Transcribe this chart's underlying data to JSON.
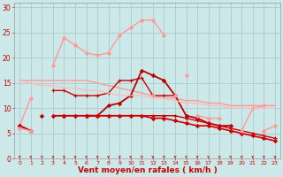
{
  "x": [
    0,
    1,
    2,
    3,
    4,
    5,
    6,
    7,
    8,
    9,
    10,
    11,
    12,
    13,
    14,
    15,
    16,
    17,
    18,
    19,
    20,
    21,
    22,
    23
  ],
  "bg_color": "#cce8e8",
  "grid_color": "#aacccc",
  "xlabel": "Vent moyen/en rafales ( km/h )",
  "xlabel_color": "#cc0000",
  "xlabel_fontsize": 6.5,
  "tick_color": "#cc0000",
  "ylim": [
    0,
    31
  ],
  "yticks": [
    0,
    5,
    10,
    15,
    20,
    25,
    30
  ],
  "lines": [
    {
      "y": [
        15.5,
        15.5,
        15.5,
        15.5,
        15.5,
        15.5,
        15.5,
        15.0,
        14.5,
        14.0,
        13.5,
        13.0,
        12.5,
        12.0,
        12.0,
        11.5,
        11.5,
        11.0,
        11.0,
        10.5,
        10.5,
        10.5,
        10.5,
        10.5
      ],
      "color": "#ff9999",
      "lw": 1.0,
      "marker": null,
      "ms": 0
    },
    {
      "y": [
        6.5,
        12.0,
        null,
        18.5,
        24.0,
        22.5,
        21.0,
        20.5,
        21.0,
        24.5,
        26.0,
        27.5,
        27.5,
        24.5,
        null,
        16.5,
        null,
        null,
        null,
        null,
        null,
        null,
        null,
        null
      ],
      "color": "#ff9999",
      "lw": 1.0,
      "marker": "D",
      "ms": 2.0
    },
    {
      "y": [
        6.5,
        5.5,
        null,
        13.5,
        13.5,
        12.5,
        12.5,
        12.5,
        13.0,
        15.5,
        15.5,
        16.0,
        12.5,
        12.5,
        12.5,
        null,
        null,
        null,
        null,
        null,
        null,
        null,
        null,
        null
      ],
      "color": "#cc0000",
      "lw": 1.0,
      "marker": "+",
      "ms": 3.5
    },
    {
      "y": [
        6.5,
        null,
        8.5,
        null,
        8.5,
        null,
        8.5,
        8.5,
        10.5,
        11.0,
        12.5,
        17.5,
        16.5,
        15.5,
        12.5,
        8.5,
        8.0,
        7.0,
        6.5,
        6.5,
        null,
        null,
        null,
        null
      ],
      "color": "#bb0000",
      "lw": 1.3,
      "marker": "D",
      "ms": 2.0
    },
    {
      "y": [
        6.5,
        5.5,
        null,
        8.5,
        8.5,
        8.5,
        8.5,
        8.5,
        8.5,
        8.5,
        8.5,
        8.5,
        8.0,
        8.0,
        7.5,
        7.0,
        6.5,
        6.5,
        6.0,
        5.5,
        5.0,
        4.5,
        4.0,
        3.5
      ],
      "color": "#cc0000",
      "lw": 1.2,
      "marker": "D",
      "ms": 2.0
    },
    {
      "y": [
        6.5,
        5.5,
        null,
        8.5,
        8.5,
        8.5,
        8.5,
        8.5,
        8.5,
        8.5,
        8.5,
        8.5,
        8.5,
        8.5,
        8.5,
        8.0,
        7.5,
        7.0,
        6.5,
        6.0,
        5.5,
        5.0,
        4.5,
        4.0
      ],
      "color": "#cc0000",
      "lw": 1.0,
      "marker": "+",
      "ms": 3.5
    },
    {
      "y": [
        null,
        null,
        null,
        null,
        null,
        null,
        null,
        null,
        null,
        null,
        null,
        null,
        null,
        null,
        null,
        null,
        null,
        null,
        null,
        null,
        5.5,
        10.0,
        10.5,
        null
      ],
      "color": "#ff9999",
      "lw": 1.0,
      "marker": "D",
      "ms": 2.0
    },
    {
      "y": [
        null,
        null,
        null,
        null,
        null,
        null,
        null,
        null,
        null,
        null,
        null,
        null,
        12.5,
        null,
        12.5,
        null,
        8.5,
        8.0,
        8.0,
        null,
        null,
        null,
        null,
        null
      ],
      "color": "#ff9999",
      "lw": 1.0,
      "marker": "D",
      "ms": 2.0
    },
    {
      "y": [
        6.0,
        5.5,
        null,
        null,
        null,
        null,
        null,
        null,
        null,
        null,
        null,
        null,
        null,
        null,
        null,
        null,
        null,
        null,
        null,
        null,
        null,
        null,
        5.5,
        6.5
      ],
      "color": "#ff9999",
      "lw": 1.0,
      "marker": "D",
      "ms": 2.0
    },
    {
      "y": [
        15.5,
        15.0,
        14.5,
        14.5,
        14.0,
        14.0,
        13.5,
        13.5,
        13.0,
        12.5,
        12.5,
        12.5,
        12.0,
        12.0,
        11.5,
        11.0,
        11.0,
        10.5,
        10.5,
        10.0,
        10.0,
        10.0,
        10.0,
        10.0
      ],
      "color": "#ffbbbb",
      "lw": 1.0,
      "marker": null,
      "ms": 0
    }
  ],
  "arrow_color": "#cc0000"
}
